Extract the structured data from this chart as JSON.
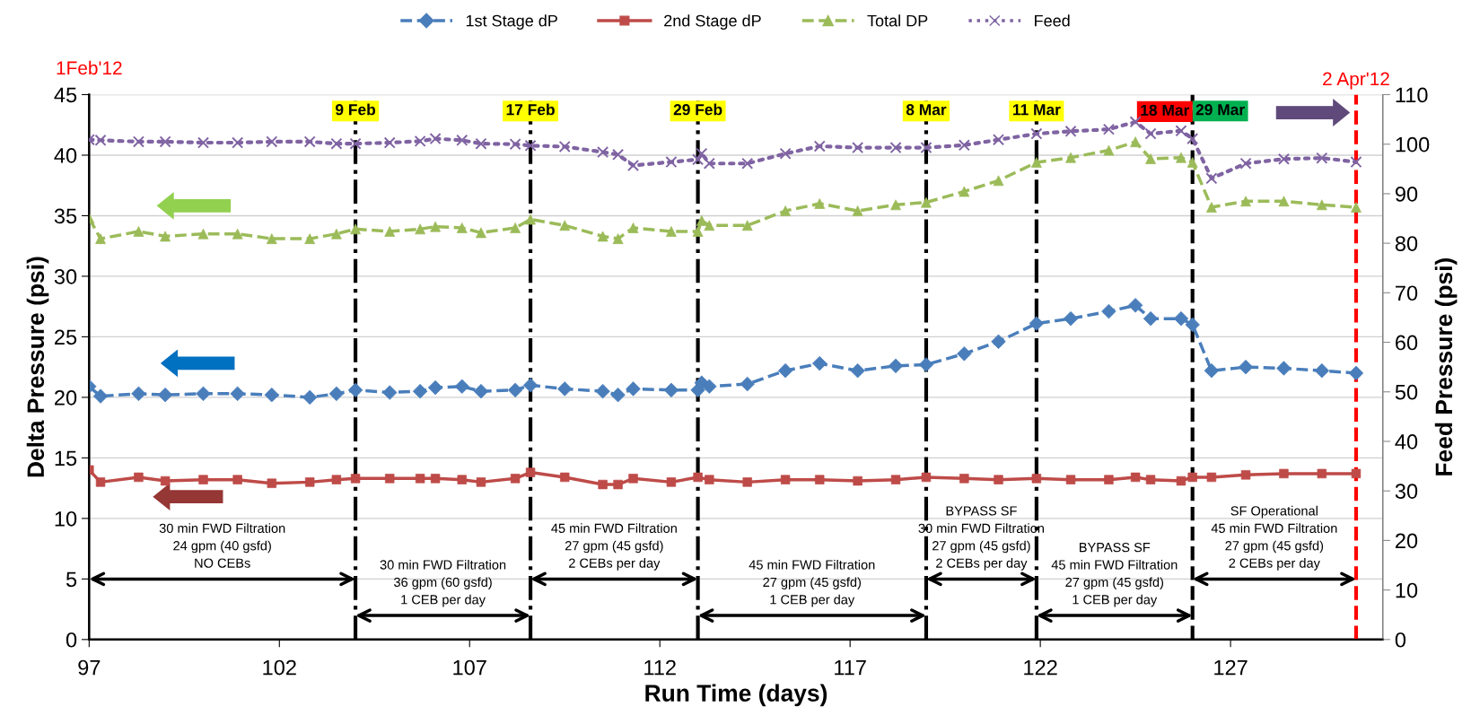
{
  "chart_data": {
    "type": "line",
    "xlabel": "Run Time (days)",
    "ylabel": "Delta Pressure (psi)",
    "y2label": "Feed Pressure (psi)",
    "x": [
      97.0,
      97.3,
      98.3,
      99.0,
      100.0,
      100.9,
      101.8,
      102.8,
      103.5,
      104.0,
      104.9,
      105.7,
      106.1,
      106.8,
      107.3,
      108.2,
      108.6,
      109.5,
      110.5,
      110.9,
      111.3,
      112.3,
      113.0,
      113.1,
      113.3,
      114.3,
      115.3,
      116.2,
      117.2,
      118.2,
      119.0,
      120.0,
      120.9,
      121.9,
      122.8,
      123.8,
      124.5,
      124.9,
      125.7,
      126.0,
      126.5,
      127.4,
      128.4,
      129.4,
      130.3
    ],
    "series": [
      {
        "name": "1st Stage dP",
        "color": "#4a7ebb",
        "marker": "diamond",
        "line_style": "dashed",
        "values": [
          20.9,
          20.1,
          20.3,
          20.2,
          20.3,
          20.3,
          20.2,
          20.0,
          20.3,
          20.6,
          20.4,
          20.5,
          20.8,
          20.9,
          20.5,
          20.6,
          21.0,
          20.7,
          20.5,
          20.2,
          20.7,
          20.6,
          20.6,
          21.2,
          20.9,
          21.1,
          22.2,
          22.8,
          22.2,
          22.6,
          22.7,
          23.6,
          24.6,
          26.1,
          26.5,
          27.1,
          27.6,
          26.5,
          26.5,
          26.0,
          22.2,
          22.5,
          22.4,
          22.2,
          22.0
        ]
      },
      {
        "name": "2nd Stage dP",
        "color": "#be4b48",
        "marker": "square",
        "line_style": "solid",
        "values": [
          14.0,
          13.0,
          13.4,
          13.1,
          13.2,
          13.2,
          12.9,
          13.0,
          13.2,
          13.3,
          13.3,
          13.3,
          13.3,
          13.2,
          13.0,
          13.3,
          13.8,
          13.4,
          12.8,
          12.8,
          13.3,
          13.0,
          13.4,
          null,
          13.2,
          13.0,
          13.2,
          13.2,
          13.1,
          13.2,
          13.4,
          13.3,
          13.2,
          13.3,
          13.2,
          13.2,
          13.4,
          13.2,
          13.1,
          13.4,
          13.4,
          13.6,
          13.7,
          13.7,
          13.7
        ]
      },
      {
        "name": "Total DP",
        "color": "#9bbb59",
        "marker": "triangle",
        "line_style": "dashed",
        "values": [
          34.8,
          33.1,
          33.7,
          33.3,
          33.5,
          33.5,
          33.1,
          33.1,
          33.5,
          33.9,
          33.7,
          33.9,
          34.1,
          34.0,
          33.6,
          34.0,
          34.7,
          34.2,
          33.3,
          33.1,
          34.0,
          33.7,
          33.7,
          34.6,
          34.2,
          34.2,
          35.4,
          36.0,
          35.4,
          35.9,
          36.1,
          37.0,
          37.9,
          39.4,
          39.8,
          40.4,
          41.1,
          39.7,
          39.8,
          39.4,
          35.7,
          36.2,
          36.2,
          35.9,
          35.7
        ]
      },
      {
        "name": "Feed",
        "color": "#7f63a2",
        "marker": "cross",
        "line_style": "dotted",
        "axis": "y2",
        "values": [
          100.9,
          100.8,
          100.5,
          100.5,
          100.3,
          100.3,
          100.5,
          100.5,
          100.1,
          100.1,
          100.3,
          100.6,
          101.1,
          100.8,
          100.1,
          100.0,
          99.7,
          99.5,
          98.4,
          97.9,
          95.7,
          96.4,
          96.9,
          98.1,
          96.1,
          96.1,
          98.1,
          99.6,
          99.3,
          99.3,
          99.3,
          99.8,
          100.9,
          102.1,
          102.6,
          103.0,
          104.5,
          102.1,
          102.7,
          101.1,
          93.1,
          96.1,
          97.0,
          97.2,
          96.4
        ]
      }
    ],
    "xlim": [
      97,
      131
    ],
    "xticks": [
      97,
      102,
      107,
      112,
      117,
      122,
      127
    ],
    "ylim": [
      0,
      45
    ],
    "yticks": [
      0,
      5,
      10,
      15,
      20,
      25,
      30,
      35,
      40,
      45
    ],
    "y2lim": [
      0,
      110
    ],
    "y2ticks": [
      0,
      10,
      20,
      30,
      40,
      50,
      60,
      70,
      80,
      90,
      100,
      110
    ],
    "grid": "y",
    "legend": "top",
    "ref_lines": [
      {
        "axis": "x",
        "value": 104.0,
        "label": "9 Feb",
        "color": "#000000",
        "line_style": "dashdot"
      },
      {
        "axis": "x",
        "value": 108.6,
        "label": "17 Feb",
        "color": "#000000",
        "line_style": "dashdot"
      },
      {
        "axis": "x",
        "value": 113.0,
        "label": "29 Feb",
        "color": "#000000",
        "line_style": "dashdot"
      },
      {
        "axis": "x",
        "value": 119.0,
        "label": "8 Mar",
        "color": "#000000",
        "line_style": "dashdot"
      },
      {
        "axis": "x",
        "value": 121.9,
        "label": "11 Mar",
        "color": "#000000",
        "line_style": "dashdot"
      },
      {
        "axis": "x",
        "value": 126.0,
        "label": "29 Mar",
        "color": "#000000",
        "line_style": "dashed"
      },
      {
        "axis": "x",
        "value": 130.3,
        "label": "2 Apr'12",
        "color": "#ff0000",
        "line_style": "dashed"
      }
    ],
    "annotations": [
      "1Feb'12",
      {
        "text": "18 Mar",
        "x": 126.0,
        "y": 43.6
      },
      "30 min FWD Filtration\n24 gpm (40 gsfd)\nNO CEBs",
      "30 min FWD Filtration\n36 gpm (60 gsfd)\n1 CEB per day",
      "45 min FWD Filtration\n27 gpm (45 gsfd)\n2 CEBs per day",
      "45 min FWD Filtration\n27 gpm (45 gsfd)\n1 CEB per day",
      "BYPASS SF\n30 min FWD Filtration\n27 gpm (45 gsfd)\n2 CEBs per day",
      "BYPASS SF\n45 min FWD Filtration\n27 gpm (45 gsfd)\n1 CEB per day",
      "SF Operational\n45 min FWD Filtration\n27 gpm (45 gsfd)\n2 CEBs per day"
    ]
  }
}
